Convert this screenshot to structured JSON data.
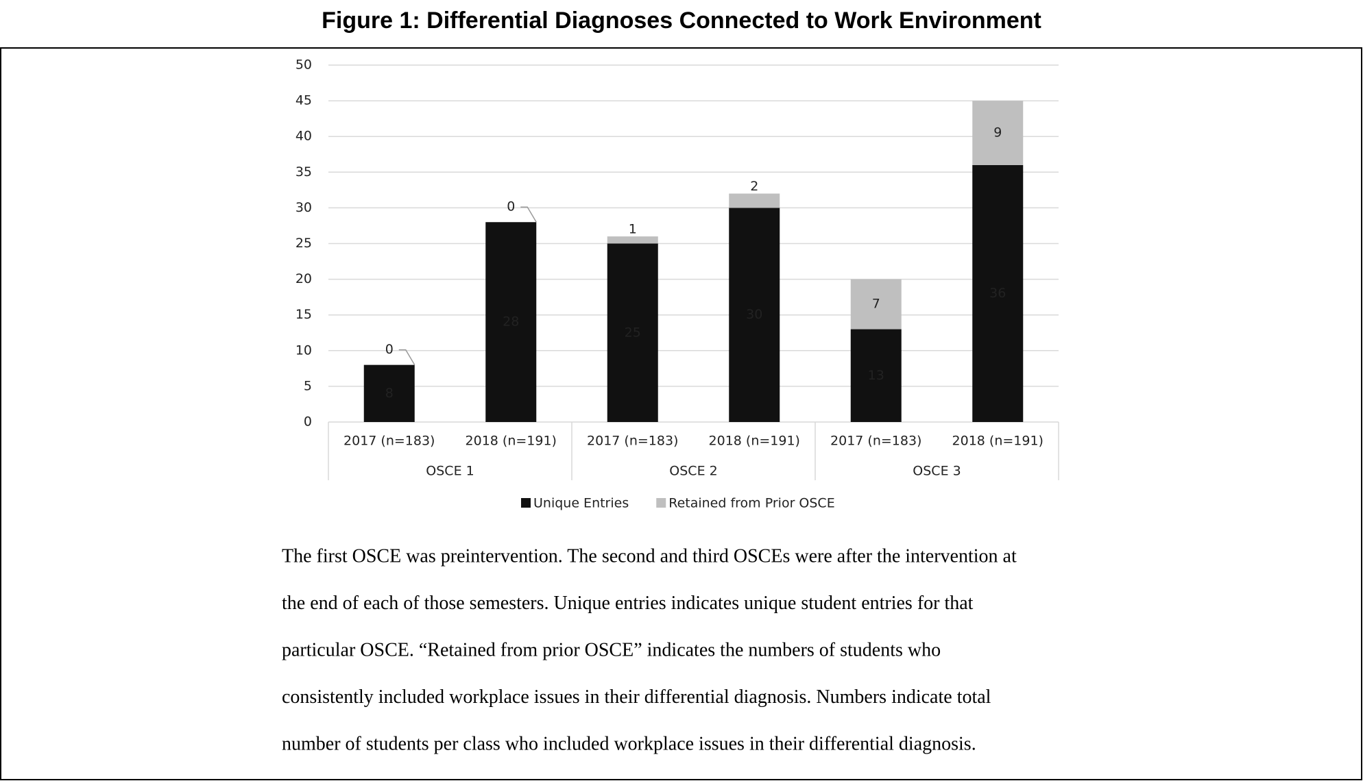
{
  "chart_data": {
    "type": "bar",
    "stacked": true,
    "title": "Figure 1: Differential Diagnoses Connected to Work Environment",
    "categories": [
      "2017 (n=183)",
      "2018 (n=191)",
      "2017 (n=183)",
      "2018 (n=191)",
      "2017 (n=183)",
      "2018 (n=191)"
    ],
    "groups": [
      "OSCE 1",
      "OSCE 2",
      "OSCE 3"
    ],
    "series": [
      {
        "name": "Unique Entries",
        "color": "#111111",
        "label_color": "#ffffff",
        "values": [
          8,
          28,
          25,
          30,
          13,
          36
        ]
      },
      {
        "name": "Retained from Prior OSCE",
        "color": "#bfbfbf",
        "label_color": "#111111",
        "values": [
          0,
          0,
          1,
          2,
          7,
          9
        ]
      }
    ],
    "ylim": [
      0,
      50
    ],
    "yticks": [
      0,
      5,
      10,
      15,
      20,
      25,
      30,
      35,
      40,
      45,
      50
    ],
    "grid": true,
    "legend": "bottom",
    "note": [
      "The first OSCE was preintervention. The second and third OSCEs were after the intervention at",
      "the end of each of those semesters. Unique entries indicates unique student entries for that",
      "particular OSCE. “Retained from prior OSCE” indicates the numbers of students who",
      "consistently included workplace issues in their differential diagnosis. Numbers indicate total",
      "number of students per class who included workplace issues in their differential diagnosis."
    ]
  }
}
